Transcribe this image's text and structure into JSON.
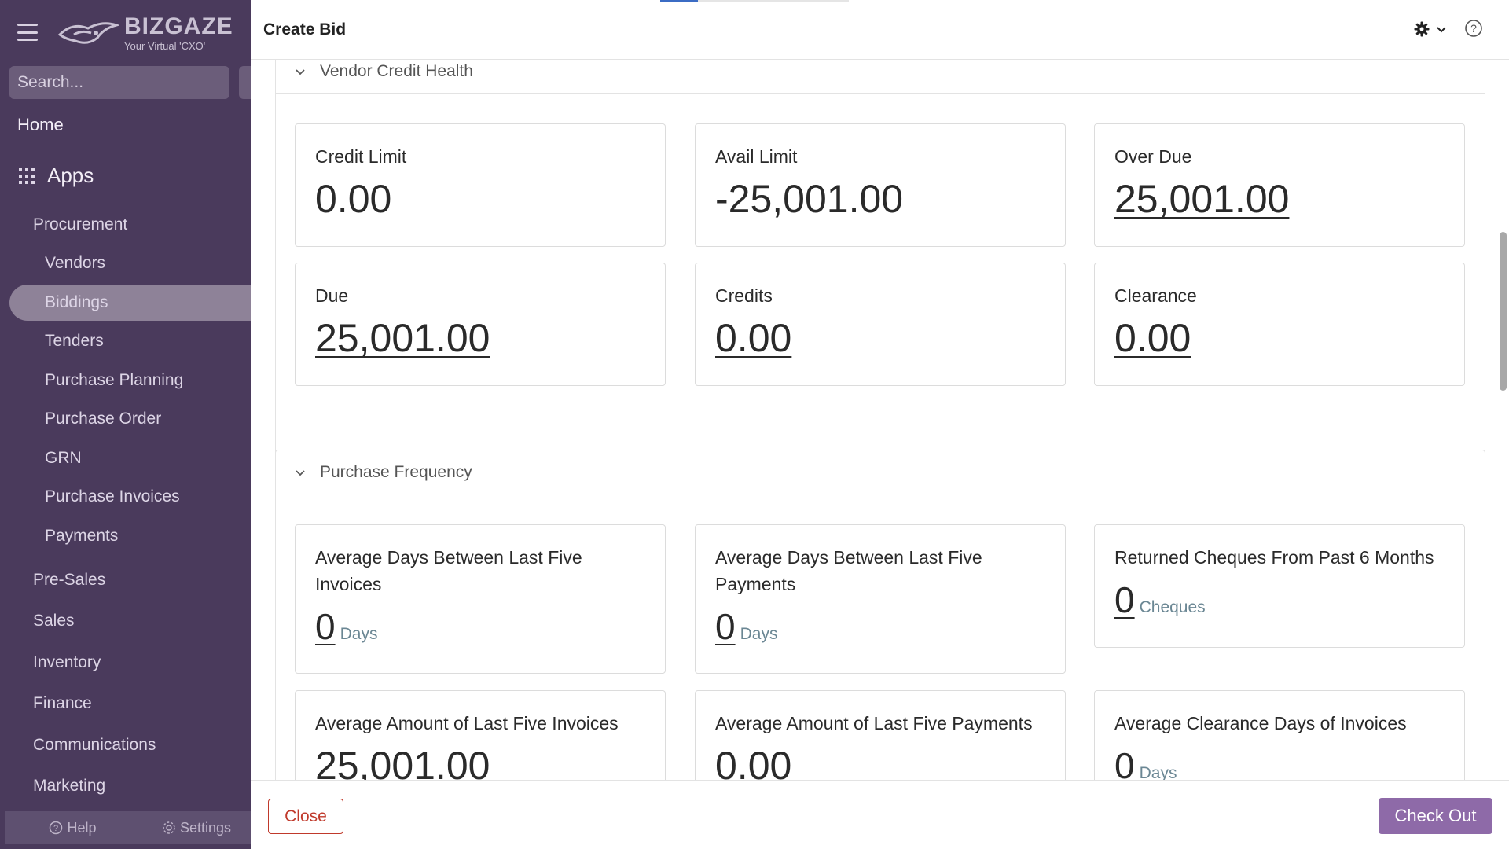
{
  "sidebar": {
    "logo": {
      "brand": "BIZGAZE",
      "tagline": "Your Virtual 'CXO'"
    },
    "search": {
      "placeholder": "Search..."
    },
    "home": "Home",
    "apps": "Apps",
    "procurement": {
      "label": "Procurement",
      "items": [
        "Vendors",
        "Biddings",
        "Tenders",
        "Purchase Planning",
        "Purchase Order",
        "GRN",
        "Purchase Invoices",
        "Payments"
      ],
      "active": "Biddings"
    },
    "groups": [
      "Pre-Sales",
      "Sales",
      "Inventory",
      "Finance",
      "Communications",
      "Marketing"
    ],
    "bottom": {
      "help": "Help",
      "settings": "Settings"
    }
  },
  "header": {
    "title": "Create Bid"
  },
  "vendor_credit_health": {
    "title": "Vendor Credit Health",
    "cards": [
      {
        "label": "Credit Limit",
        "value": "0.00"
      },
      {
        "label": "Avail Limit",
        "value": "-25,001.00"
      },
      {
        "label": "Over Due",
        "value": "25,001.00"
      },
      {
        "label": "Due",
        "value": "25,001.00"
      },
      {
        "label": "Credits",
        "value": "0.00"
      },
      {
        "label": "Clearance",
        "value": "0.00"
      }
    ]
  },
  "purchase_frequency": {
    "title": "Purchase Frequency",
    "cards": [
      {
        "label": "Average Days Between Last Five Invoices",
        "value": "0",
        "unit": "Days"
      },
      {
        "label": "Average Days Between Last Five Payments",
        "value": "0",
        "unit": "Days"
      },
      {
        "label": "Returned Cheques From Past 6 Months",
        "value": "0",
        "unit": "Cheques"
      },
      {
        "label": "Average Amount of Last Five Invoices",
        "value": "25,001.00"
      },
      {
        "label": "Average Amount of Last Five Payments",
        "value": "0.00"
      },
      {
        "label": "Average Clearance Days of Invoices",
        "value": "0",
        "unit": "Days"
      }
    ]
  },
  "footer": {
    "close": "Close",
    "checkout": "Check Out"
  },
  "colors": {
    "sidebar": "#4a3a5c",
    "accent": "#8e6aa8",
    "danger": "#c0392b"
  }
}
